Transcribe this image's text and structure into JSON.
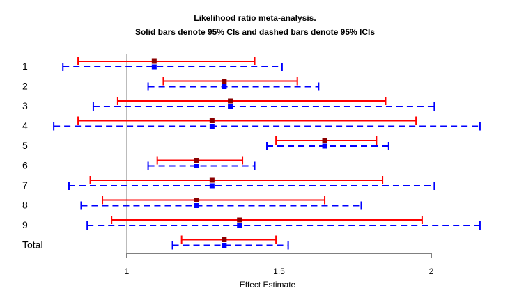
{
  "chart_data": {
    "type": "forest",
    "title": "Likelihood ratio meta-analysis.",
    "subtitle": "Solid bars denote 95% CIs and dashed bars denote 95% ICIs",
    "xlabel": "Effect Estimate",
    "xticks": [
      1,
      1.5,
      2
    ],
    "xtick_labels": [
      "1",
      "1.5",
      "2"
    ],
    "xlim": [
      0.75,
      2.17
    ],
    "reference_line": 1,
    "ci_color": "#ff0000",
    "ici_color": "#0000ff",
    "ci_point_color": "#8b0000",
    "ici_point_color": "#0000ff",
    "rows": [
      {
        "label": "1",
        "estimate": 1.09,
        "ci": [
          0.84,
          1.42
        ],
        "ici": [
          0.79,
          1.51
        ]
      },
      {
        "label": "2",
        "estimate": 1.32,
        "ci": [
          1.12,
          1.56
        ],
        "ici": [
          1.07,
          1.63
        ]
      },
      {
        "label": "3",
        "estimate": 1.34,
        "ci": [
          0.97,
          1.85
        ],
        "ici": [
          0.89,
          2.01
        ]
      },
      {
        "label": "4",
        "estimate": 1.28,
        "ci": [
          0.84,
          1.95
        ],
        "ici": [
          0.76,
          2.16
        ]
      },
      {
        "label": "5",
        "estimate": 1.65,
        "ci": [
          1.49,
          1.82
        ],
        "ici": [
          1.46,
          1.86
        ]
      },
      {
        "label": "6",
        "estimate": 1.23,
        "ci": [
          1.1,
          1.38
        ],
        "ici": [
          1.07,
          1.42
        ]
      },
      {
        "label": "7",
        "estimate": 1.28,
        "ci": [
          0.88,
          1.84
        ],
        "ici": [
          0.81,
          2.01
        ]
      },
      {
        "label": "8",
        "estimate": 1.23,
        "ci": [
          0.92,
          1.65
        ],
        "ici": [
          0.85,
          1.77
        ]
      },
      {
        "label": "9",
        "estimate": 1.37,
        "ci": [
          0.95,
          1.97
        ],
        "ici": [
          0.87,
          2.16
        ]
      },
      {
        "label": "Total",
        "estimate": 1.32,
        "ci": [
          1.18,
          1.49
        ],
        "ici": [
          1.15,
          1.53
        ]
      }
    ]
  }
}
